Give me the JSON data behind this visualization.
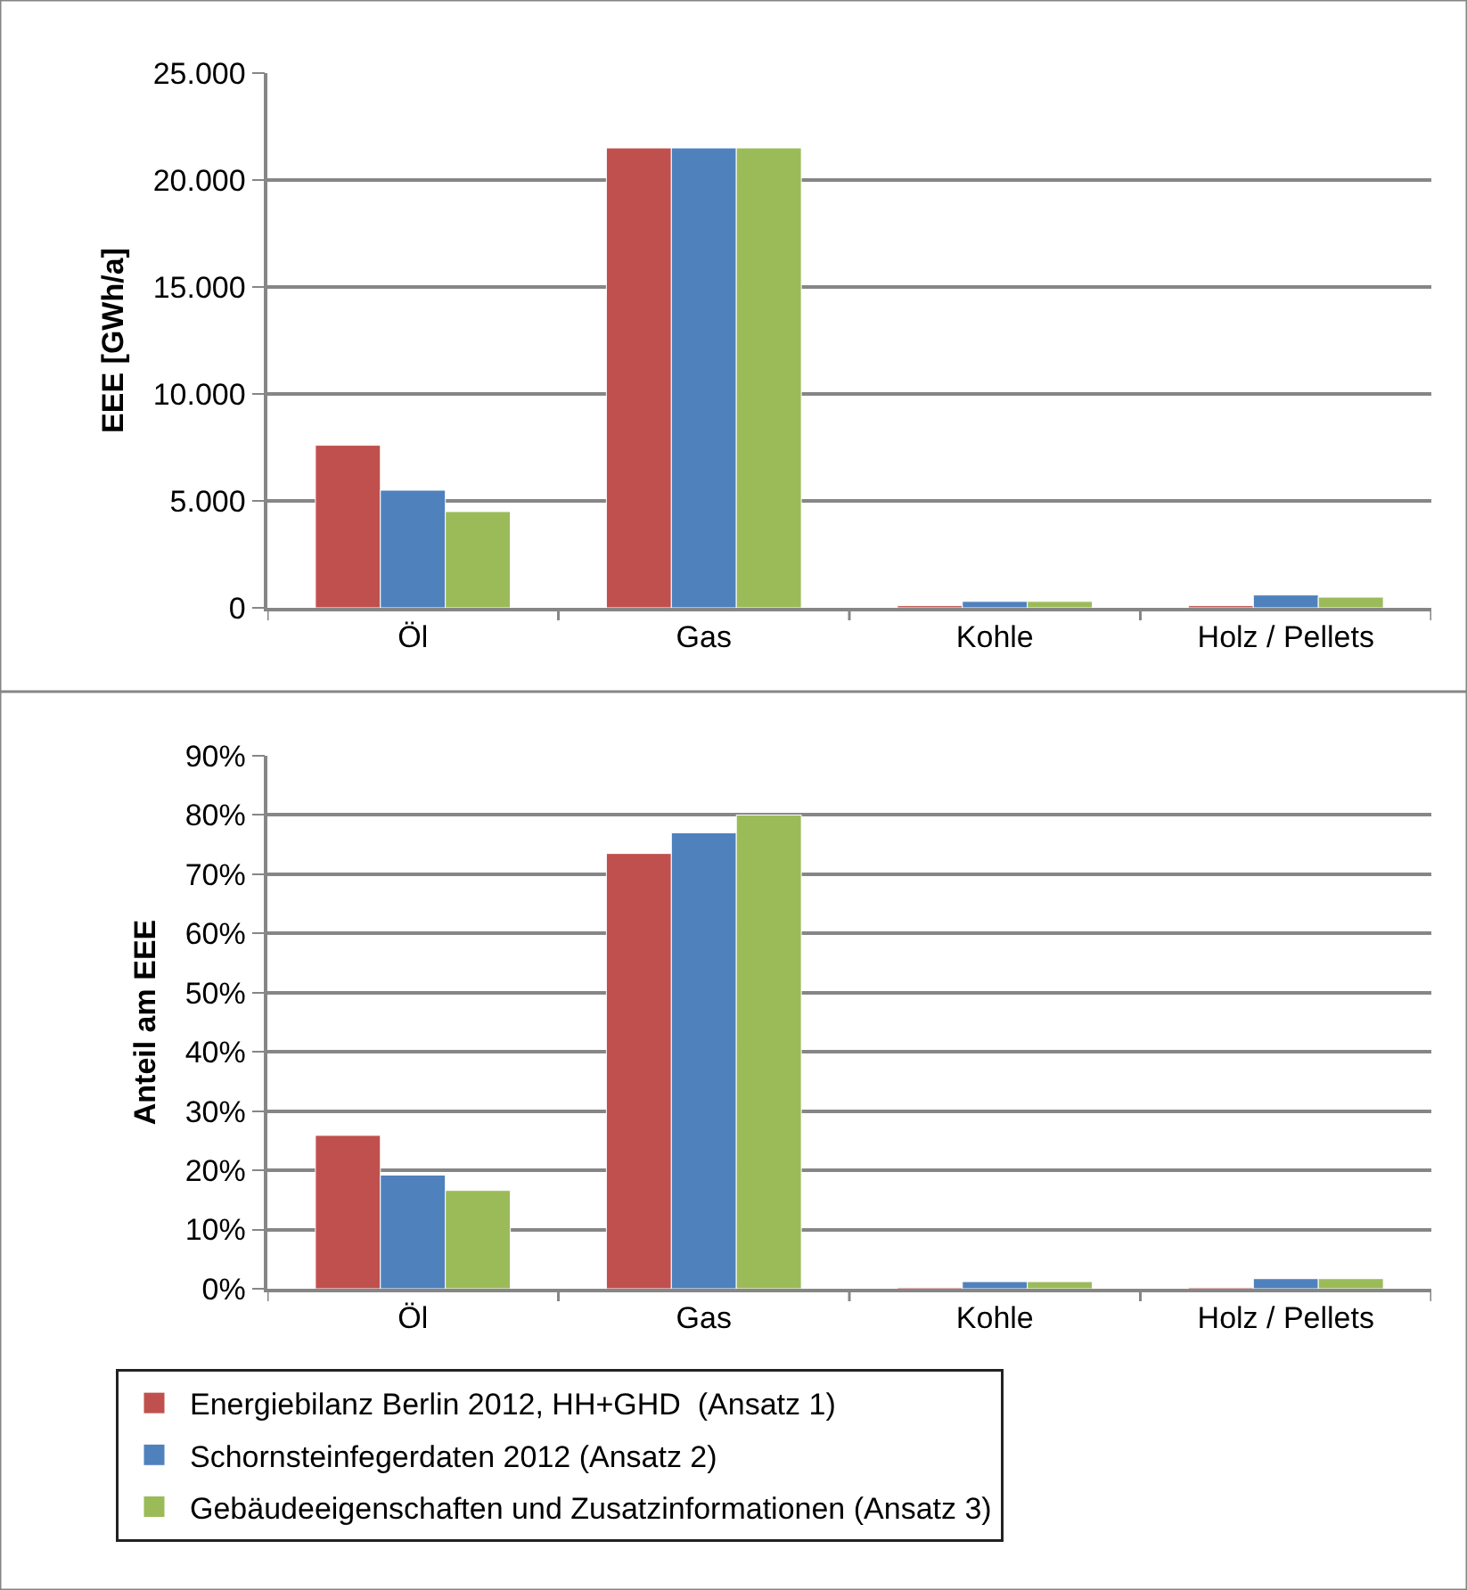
{
  "chart_data": [
    {
      "type": "bar",
      "ylabel": "EEE [GWh/a]",
      "categories": [
        "Öl",
        "Gas",
        "Kohle",
        "Holz / Pellets"
      ],
      "series": [
        {
          "color": "#c0504d",
          "values": [
            7600,
            21500,
            100,
            100
          ]
        },
        {
          "color": "#4f81bd",
          "values": [
            5500,
            21500,
            300,
            600
          ]
        },
        {
          "color": "#9bbb59",
          "values": [
            4500,
            21500,
            300,
            500
          ]
        }
      ],
      "ylim": [
        0,
        25000
      ],
      "yticks": [
        0,
        {
          "value": 5000,
          "label": "5.000"
        },
        {
          "value": 10000,
          "label": "10.000"
        },
        {
          "value": 15000,
          "label": "15.000"
        },
        {
          "value": 20000,
          "label": "20.000"
        },
        {
          "value": 25000,
          "label": "25.000"
        }
      ],
      "grid": "y"
    },
    {
      "type": "bar",
      "ylabel": "Anteil am EEE",
      "categories": [
        "Öl",
        "Gas",
        "Kohle",
        "Holz / Pellets"
      ],
      "series": [
        {
          "name": "Energiebilanz Berlin 2012, HH+GHD  (Ansatz 1)",
          "color": "#c0504d",
          "values": [
            25.9,
            73.5,
            0.2,
            0.2
          ]
        },
        {
          "name": "Schornsteinfegerdaten 2012 (Ansatz 2)",
          "color": "#4f81bd",
          "values": [
            19.2,
            77.0,
            1.2,
            1.7
          ]
        },
        {
          "name": "Gebäudeeigenschaften und Zusatzinformationen (Ansatz 3)",
          "color": "#9bbb59",
          "values": [
            16.6,
            80.0,
            1.2,
            1.7
          ]
        }
      ],
      "ylim": [
        0,
        90
      ],
      "yticks": [
        {
          "value": 0,
          "label": "0%"
        },
        {
          "value": 10,
          "label": "10%"
        },
        {
          "value": 20,
          "label": "20%"
        },
        {
          "value": 30,
          "label": "30%"
        },
        {
          "value": 40,
          "label": "40%"
        },
        {
          "value": 50,
          "label": "50%"
        },
        {
          "value": 60,
          "label": "60%"
        },
        {
          "value": 70,
          "label": "70%"
        },
        {
          "value": 80,
          "label": "80%"
        },
        {
          "value": 90,
          "label": "90%"
        }
      ],
      "grid": "y",
      "legend": "bottom"
    }
  ]
}
